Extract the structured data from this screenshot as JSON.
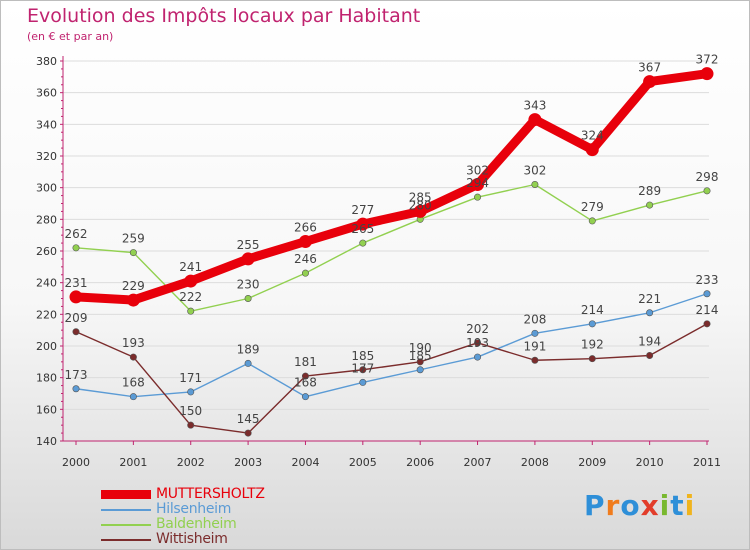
{
  "header": {
    "title": "Evolution des Impôts locaux par Habitant",
    "subtitle": "(en € et par an)"
  },
  "logo": {
    "text": "Proxiti",
    "letters": [
      "P",
      "r",
      "o",
      "x",
      "i",
      "t",
      "i"
    ]
  },
  "colors": {
    "title": "#c0236f",
    "axis": "#c0236f",
    "grid": "#dcdcdc",
    "label": "#444444"
  },
  "chart_data": {
    "type": "line",
    "title": "Evolution des Impôts locaux par Habitant",
    "subtitle": "(en € et par an)",
    "xlabel": "",
    "ylabel": "",
    "categories": [
      "2000",
      "2001",
      "2002",
      "2003",
      "2004",
      "2005",
      "2006",
      "2007",
      "2008",
      "2009",
      "2010",
      "2011"
    ],
    "ylim": [
      140,
      380
    ],
    "yticks": [
      140,
      160,
      180,
      200,
      220,
      240,
      260,
      280,
      300,
      320,
      340,
      360,
      380
    ],
    "grid": true,
    "legend_position": "bottom-left",
    "series": [
      {
        "name": "MUTTERSHOLTZ",
        "color": "#e8000b",
        "emphasis": true,
        "values": [
          231,
          229,
          241,
          255,
          266,
          277,
          285,
          302,
          343,
          324,
          367,
          372
        ]
      },
      {
        "name": "Hilsenheim",
        "color": "#5b9bd5",
        "emphasis": false,
        "values": [
          173,
          168,
          171,
          189,
          168,
          177,
          185,
          193,
          208,
          214,
          221,
          233
        ]
      },
      {
        "name": "Baldenheim",
        "color": "#92d050",
        "emphasis": false,
        "values": [
          262,
          259,
          222,
          230,
          246,
          265,
          280,
          294,
          302,
          279,
          289,
          298
        ]
      },
      {
        "name": "Wittisheim",
        "color": "#7b2c2c",
        "emphasis": false,
        "values": [
          209,
          193,
          150,
          145,
          181,
          185,
          190,
          202,
          191,
          192,
          194,
          214
        ]
      }
    ]
  }
}
